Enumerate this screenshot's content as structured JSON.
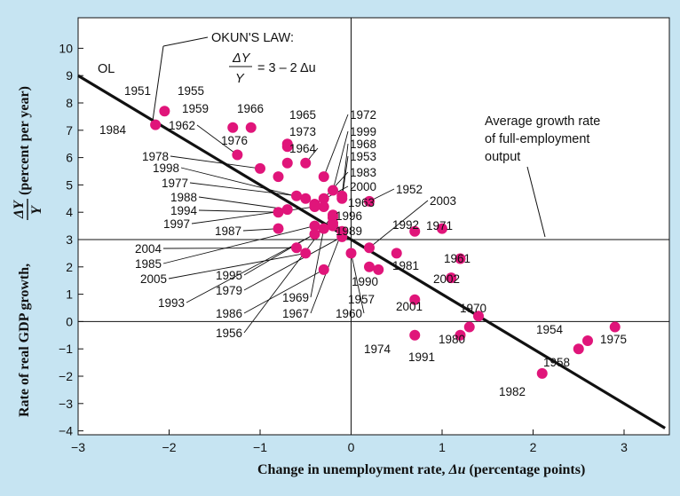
{
  "chart_data": {
    "type": "scatter",
    "xlabel_text": "Change in unemployment rate, ",
    "xlabel_var": "Δu",
    "xlabel_unit": " (percentage points)",
    "ylabel_prefix": "Rate of real GDP growth, ",
    "ylabel_suffix": " (percent per year)",
    "ylabel_frac_num": "ΔY",
    "ylabel_frac_den": "Y",
    "xlim": [
      -3,
      3.5
    ],
    "ylim": [
      -4,
      10.5
    ],
    "x_ticks": [
      -3,
      -2,
      -1,
      0,
      1,
      2,
      3
    ],
    "x_tick_labels": [
      "−3",
      "−2",
      "−1",
      "0",
      "1",
      "2",
      "3"
    ],
    "y_ticks": [
      -4,
      -3,
      -2,
      -1,
      0,
      1,
      2,
      3,
      4,
      5,
      6,
      7,
      8,
      9,
      10
    ],
    "y_tick_labels": [
      "−4",
      "−3",
      "−2",
      "−1",
      "0",
      "1",
      "2",
      "3",
      "4",
      "5",
      "6",
      "7",
      "8",
      "9",
      "10"
    ],
    "reference_lines": {
      "horizontal": [
        0,
        3
      ],
      "vertical": [
        0
      ]
    },
    "okun_line": {
      "label": "OL",
      "intercept": 3,
      "slope": -2
    },
    "okun_annotation": {
      "title": "OKUN'S LAW:",
      "lhs_num": "ΔY",
      "lhs_den": "Y",
      "rhs": "= 3 – 2 Δu"
    },
    "full_employment_annotation": [
      "Average growth rate",
      "of full-employment",
      "output"
    ],
    "point_color": "#e0157a",
    "points": [
      {
        "year": "1951",
        "x": -2.05,
        "y": 7.7
      },
      {
        "year": "1984",
        "x": -2.15,
        "y": 7.2
      },
      {
        "year": "1955",
        "x": -1.1,
        "y": 7.1
      },
      {
        "year": "1959",
        "x": -1.3,
        "y": 7.1
      },
      {
        "year": "1962",
        "x": -1.25,
        "y": 6.1
      },
      {
        "year": "1966",
        "x": -0.7,
        "y": 6.5
      },
      {
        "year": "1965",
        "x": -0.7,
        "y": 6.4
      },
      {
        "year": "1973",
        "x": -0.7,
        "y": 5.8
      },
      {
        "year": "1976",
        "x": -0.8,
        "y": 5.3
      },
      {
        "year": "1964",
        "x": -0.5,
        "y": 5.8
      },
      {
        "year": "1978",
        "x": -1.0,
        "y": 5.6
      },
      {
        "year": "1972",
        "x": -0.3,
        "y": 5.3
      },
      {
        "year": "1999",
        "x": -0.2,
        "y": 4.8
      },
      {
        "year": "1968",
        "x": -0.1,
        "y": 4.6
      },
      {
        "year": "1953",
        "x": -0.1,
        "y": 4.5
      },
      {
        "year": "1983",
        "x": -0.3,
        "y": 4.5
      },
      {
        "year": "2000",
        "x": -0.4,
        "y": 4.3
      },
      {
        "year": "1998",
        "x": -0.5,
        "y": 4.5
      },
      {
        "year": "1977",
        "x": -0.6,
        "y": 4.6
      },
      {
        "year": "1963",
        "x": -0.3,
        "y": 4.2
      },
      {
        "year": "1988",
        "x": -0.7,
        "y": 4.1
      },
      {
        "year": "1994",
        "x": -0.8,
        "y": 4.0
      },
      {
        "year": "1997",
        "x": -0.4,
        "y": 4.2
      },
      {
        "year": "1996",
        "x": -0.2,
        "y": 3.8
      },
      {
        "year": "1989",
        "x": -0.2,
        "y": 3.5
      },
      {
        "year": "1987",
        "x": -0.8,
        "y": 3.4
      },
      {
        "year": "1952",
        "x": 0.2,
        "y": 4.4
      },
      {
        "year": "2003",
        "x": 0.2,
        "y": 2.7
      },
      {
        "year": "1992",
        "x": 0.7,
        "y": 3.3
      },
      {
        "year": "1971",
        "x": 1.0,
        "y": 3.4
      },
      {
        "year": "2004",
        "x": -0.6,
        "y": 2.7
      },
      {
        "year": "1985",
        "x": -0.4,
        "y": 3.5
      },
      {
        "year": "2005",
        "x": -0.5,
        "y": 2.5
      },
      {
        "year": "1995",
        "x": -0.2,
        "y": 3.6
      },
      {
        "year": "1979",
        "x": -0.1,
        "y": 3.1
      },
      {
        "year": "1993",
        "x": -0.4,
        "y": 3.2
      },
      {
        "year": "1981",
        "x": 0.5,
        "y": 2.5
      },
      {
        "year": "1961",
        "x": 1.2,
        "y": 2.3
      },
      {
        "year": "1990",
        "x": 0.2,
        "y": 2.0
      },
      {
        "year": "1957",
        "x": 0.3,
        "y": 1.9
      },
      {
        "year": "2002",
        "x": 1.1,
        "y": 1.6
      },
      {
        "year": "1986",
        "x": -0.3,
        "y": 1.9
      },
      {
        "year": "1969",
        "x": -0.3,
        "y": 3.4
      },
      {
        "year": "1967",
        "x": -0.1,
        "y": 3.3
      },
      {
        "year": "1960",
        "x": 0.0,
        "y": 2.5
      },
      {
        "year": "1956",
        "x": -0.2,
        "y": 3.9
      },
      {
        "year": "2001",
        "x": 0.7,
        "y": 0.8
      },
      {
        "year": "1970",
        "x": 1.4,
        "y": 0.2
      },
      {
        "year": "1974",
        "x": 0.7,
        "y": -0.5
      },
      {
        "year": "1980",
        "x": 1.3,
        "y": -0.2
      },
      {
        "year": "1991",
        "x": 1.2,
        "y": -0.5
      },
      {
        "year": "1954",
        "x": 2.6,
        "y": -0.7
      },
      {
        "year": "1975",
        "x": 2.9,
        "y": -0.2
      },
      {
        "year": "1958",
        "x": 2.5,
        "y": -1.0
      },
      {
        "year": "1982",
        "x": 2.1,
        "y": -1.9
      }
    ]
  }
}
